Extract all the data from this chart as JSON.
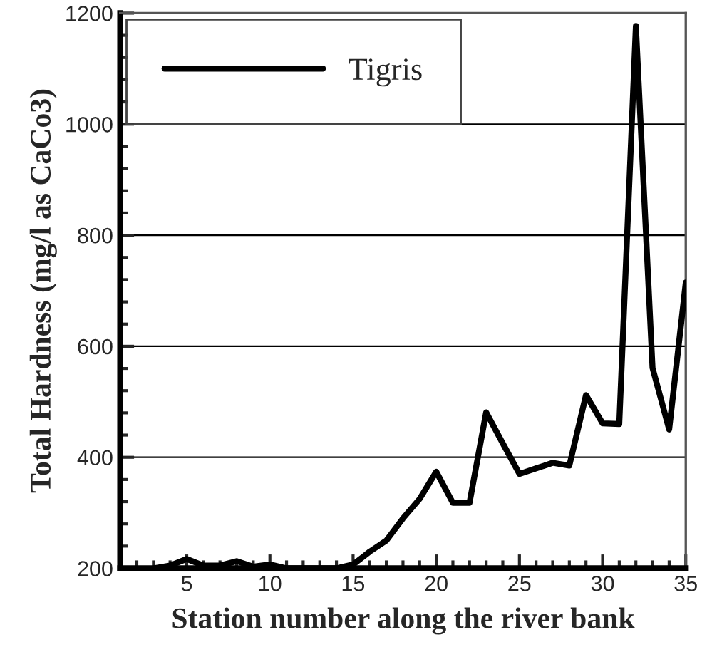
{
  "chart_data": {
    "type": "line",
    "xlabel": "Station number along the river bank",
    "ylabel": "Total Hardness (mg/l as CaCo3)",
    "x": [
      3,
      4,
      5,
      6,
      7,
      8,
      9,
      10,
      11,
      12,
      13,
      14,
      15,
      16,
      17,
      18,
      19,
      20,
      21,
      22,
      23,
      24,
      25,
      26,
      27,
      28,
      29,
      30,
      31,
      32,
      33,
      34,
      35
    ],
    "series": [
      {
        "name": "Tigris",
        "color": "#000000",
        "values": [
          200,
          205,
          217,
          205,
          205,
          213,
          203,
          207,
          200,
          200,
          200,
          200,
          207,
          230,
          250,
          290,
          325,
          374,
          318,
          318,
          481,
          425,
          370,
          380,
          390,
          385,
          512,
          461,
          460,
          1177,
          561,
          450,
          715
        ]
      }
    ],
    "xlim": [
      1,
      35
    ],
    "ylim": [
      200,
      1200
    ],
    "xticks": [
      5,
      10,
      15,
      20,
      25,
      30,
      35
    ],
    "yticks": [
      200,
      400,
      600,
      800,
      1000,
      1200
    ],
    "grid": "y",
    "legend": "top left",
    "line_style": "solid",
    "marker": "none"
  }
}
